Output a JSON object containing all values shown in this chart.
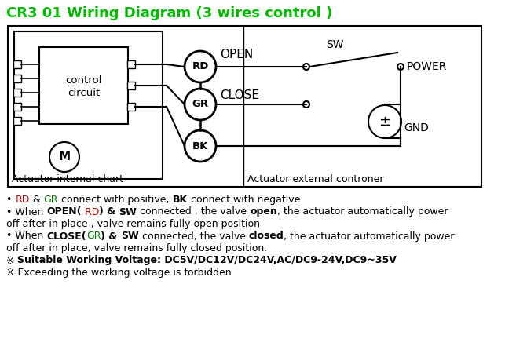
{
  "title": "CR3 01 Wiring Diagram (3 wires control )",
  "title_color": "#00bb00",
  "bg_color": "#ffffff",
  "body_lines": [
    [
      {
        "t": "• ",
        "b": false,
        "c": "#000000"
      },
      {
        "t": "RD",
        "b": false,
        "c": "#cc0000"
      },
      {
        "t": " & ",
        "b": false,
        "c": "#000000"
      },
      {
        "t": "GR",
        "b": false,
        "c": "#007700"
      },
      {
        "t": " connect with positive, ",
        "b": false,
        "c": "#000000"
      },
      {
        "t": "BK",
        "b": true,
        "c": "#000000"
      },
      {
        "t": " connect with negative",
        "b": false,
        "c": "#000000"
      }
    ],
    [
      {
        "t": "• When ",
        "b": false,
        "c": "#000000"
      },
      {
        "t": "OPEN(",
        "b": true,
        "c": "#000000"
      },
      {
        "t": " RD",
        "b": false,
        "c": "#cc0000"
      },
      {
        "t": ") & ",
        "b": true,
        "c": "#000000"
      },
      {
        "t": "SW",
        "b": true,
        "c": "#000000"
      },
      {
        "t": " connected , the valve ",
        "b": false,
        "c": "#000000"
      },
      {
        "t": "open",
        "b": true,
        "c": "#000000"
      },
      {
        "t": ", the actuator automatically power",
        "b": false,
        "c": "#000000"
      }
    ],
    [
      {
        "t": "off after in place , valve remains fully open position",
        "b": false,
        "c": "#000000"
      }
    ],
    [
      {
        "t": "• When ",
        "b": false,
        "c": "#000000"
      },
      {
        "t": "CLOSE(",
        "b": true,
        "c": "#000000"
      },
      {
        "t": "GR",
        "b": false,
        "c": "#007700"
      },
      {
        "t": ") & ",
        "b": true,
        "c": "#000000"
      },
      {
        "t": "SW",
        "b": true,
        "c": "#000000"
      },
      {
        "t": " connected, the valve ",
        "b": false,
        "c": "#000000"
      },
      {
        "t": "closed",
        "b": true,
        "c": "#000000"
      },
      {
        "t": ", the actuator automatically power",
        "b": false,
        "c": "#000000"
      }
    ],
    [
      {
        "t": "off after in place, valve remains fully closed position.",
        "b": false,
        "c": "#000000"
      }
    ],
    [
      {
        "t": "※ ",
        "b": false,
        "c": "#000000"
      },
      {
        "t": "Suitable Working Voltage: DC5V/DC12V/DC24V,AC/DC9-24V,DC9~35V",
        "b": true,
        "c": "#000000"
      }
    ],
    [
      {
        "t": "※ Exceeding the working voltage is forbidden",
        "b": false,
        "c": "#000000"
      }
    ]
  ]
}
